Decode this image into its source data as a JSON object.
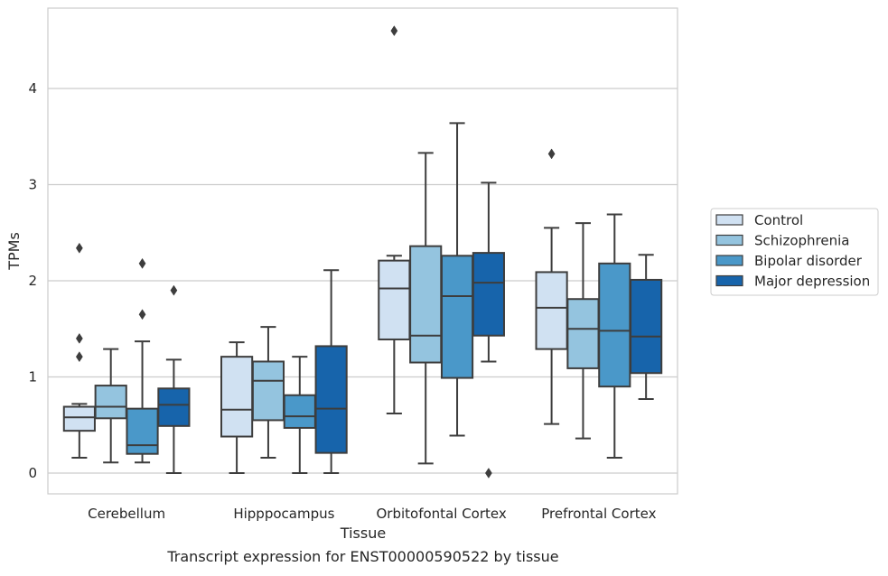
{
  "chart_data": {
    "type": "box",
    "title": "",
    "xlabel": "Tissue",
    "ylabel": "TPMs",
    "caption": "Transcript expression for ENST00000590522 by tissue",
    "ylim": [
      -0.22,
      4.8
    ],
    "yticks": [
      0,
      1,
      2,
      3,
      4
    ],
    "grid": "horizontal",
    "legend_position": "right",
    "categories": [
      "Cerebellum",
      "Hipppocampus",
      "Orbitofontal Cortex",
      "Prefrontal Cortex"
    ],
    "series": [
      {
        "name": "Control",
        "color": "#d0e1f2",
        "boxes": [
          {
            "whislo": 0.16,
            "q1": 0.44,
            "med": 0.58,
            "q3": 0.69,
            "whishi": 0.72,
            "fliers": [
              1.21,
              1.4,
              2.34
            ]
          },
          {
            "whislo": 0.0,
            "q1": 0.38,
            "med": 0.66,
            "q3": 1.21,
            "whishi": 1.36,
            "fliers": []
          },
          {
            "whislo": 0.62,
            "q1": 1.39,
            "med": 1.92,
            "q3": 2.21,
            "whishi": 2.26,
            "fliers": [
              4.6
            ]
          },
          {
            "whislo": 0.51,
            "q1": 1.29,
            "med": 1.72,
            "q3": 2.09,
            "whishi": 2.55,
            "fliers": [
              3.32
            ]
          }
        ]
      },
      {
        "name": "Schizophrenia",
        "color": "#94c4df",
        "boxes": [
          {
            "whislo": 0.11,
            "q1": 0.57,
            "med": 0.69,
            "q3": 0.91,
            "whishi": 1.29,
            "fliers": []
          },
          {
            "whislo": 0.16,
            "q1": 0.55,
            "med": 0.96,
            "q3": 1.16,
            "whishi": 1.52,
            "fliers": []
          },
          {
            "whislo": 0.1,
            "q1": 1.15,
            "med": 1.43,
            "q3": 2.36,
            "whishi": 3.33,
            "fliers": []
          },
          {
            "whislo": 0.36,
            "q1": 1.09,
            "med": 1.5,
            "q3": 1.81,
            "whishi": 2.6,
            "fliers": []
          }
        ]
      },
      {
        "name": "Bipolar disorder",
        "color": "#4a98c9",
        "boxes": [
          {
            "whislo": 0.11,
            "q1": 0.2,
            "med": 0.29,
            "q3": 0.67,
            "whishi": 1.37,
            "fliers": [
              1.65,
              2.18
            ]
          },
          {
            "whislo": 0.0,
            "q1": 0.47,
            "med": 0.59,
            "q3": 0.81,
            "whishi": 1.21,
            "fliers": []
          },
          {
            "whislo": 0.39,
            "q1": 0.99,
            "med": 1.84,
            "q3": 2.26,
            "whishi": 3.64,
            "fliers": []
          },
          {
            "whislo": 0.16,
            "q1": 0.9,
            "med": 1.48,
            "q3": 2.18,
            "whishi": 2.69,
            "fliers": []
          }
        ]
      },
      {
        "name": "Major depression",
        "color": "#1764ab",
        "boxes": [
          {
            "whislo": 0.0,
            "q1": 0.49,
            "med": 0.71,
            "q3": 0.88,
            "whishi": 1.18,
            "fliers": [
              1.9
            ]
          },
          {
            "whislo": 0.0,
            "q1": 0.21,
            "med": 0.67,
            "q3": 1.32,
            "whishi": 2.11,
            "fliers": []
          },
          {
            "whislo": 1.16,
            "q1": 1.43,
            "med": 1.98,
            "q3": 2.29,
            "whishi": 3.02,
            "fliers": [
              0.0
            ]
          },
          {
            "whislo": 0.77,
            "q1": 1.04,
            "med": 1.42,
            "q3": 2.01,
            "whishi": 2.27,
            "fliers": []
          }
        ]
      }
    ]
  }
}
